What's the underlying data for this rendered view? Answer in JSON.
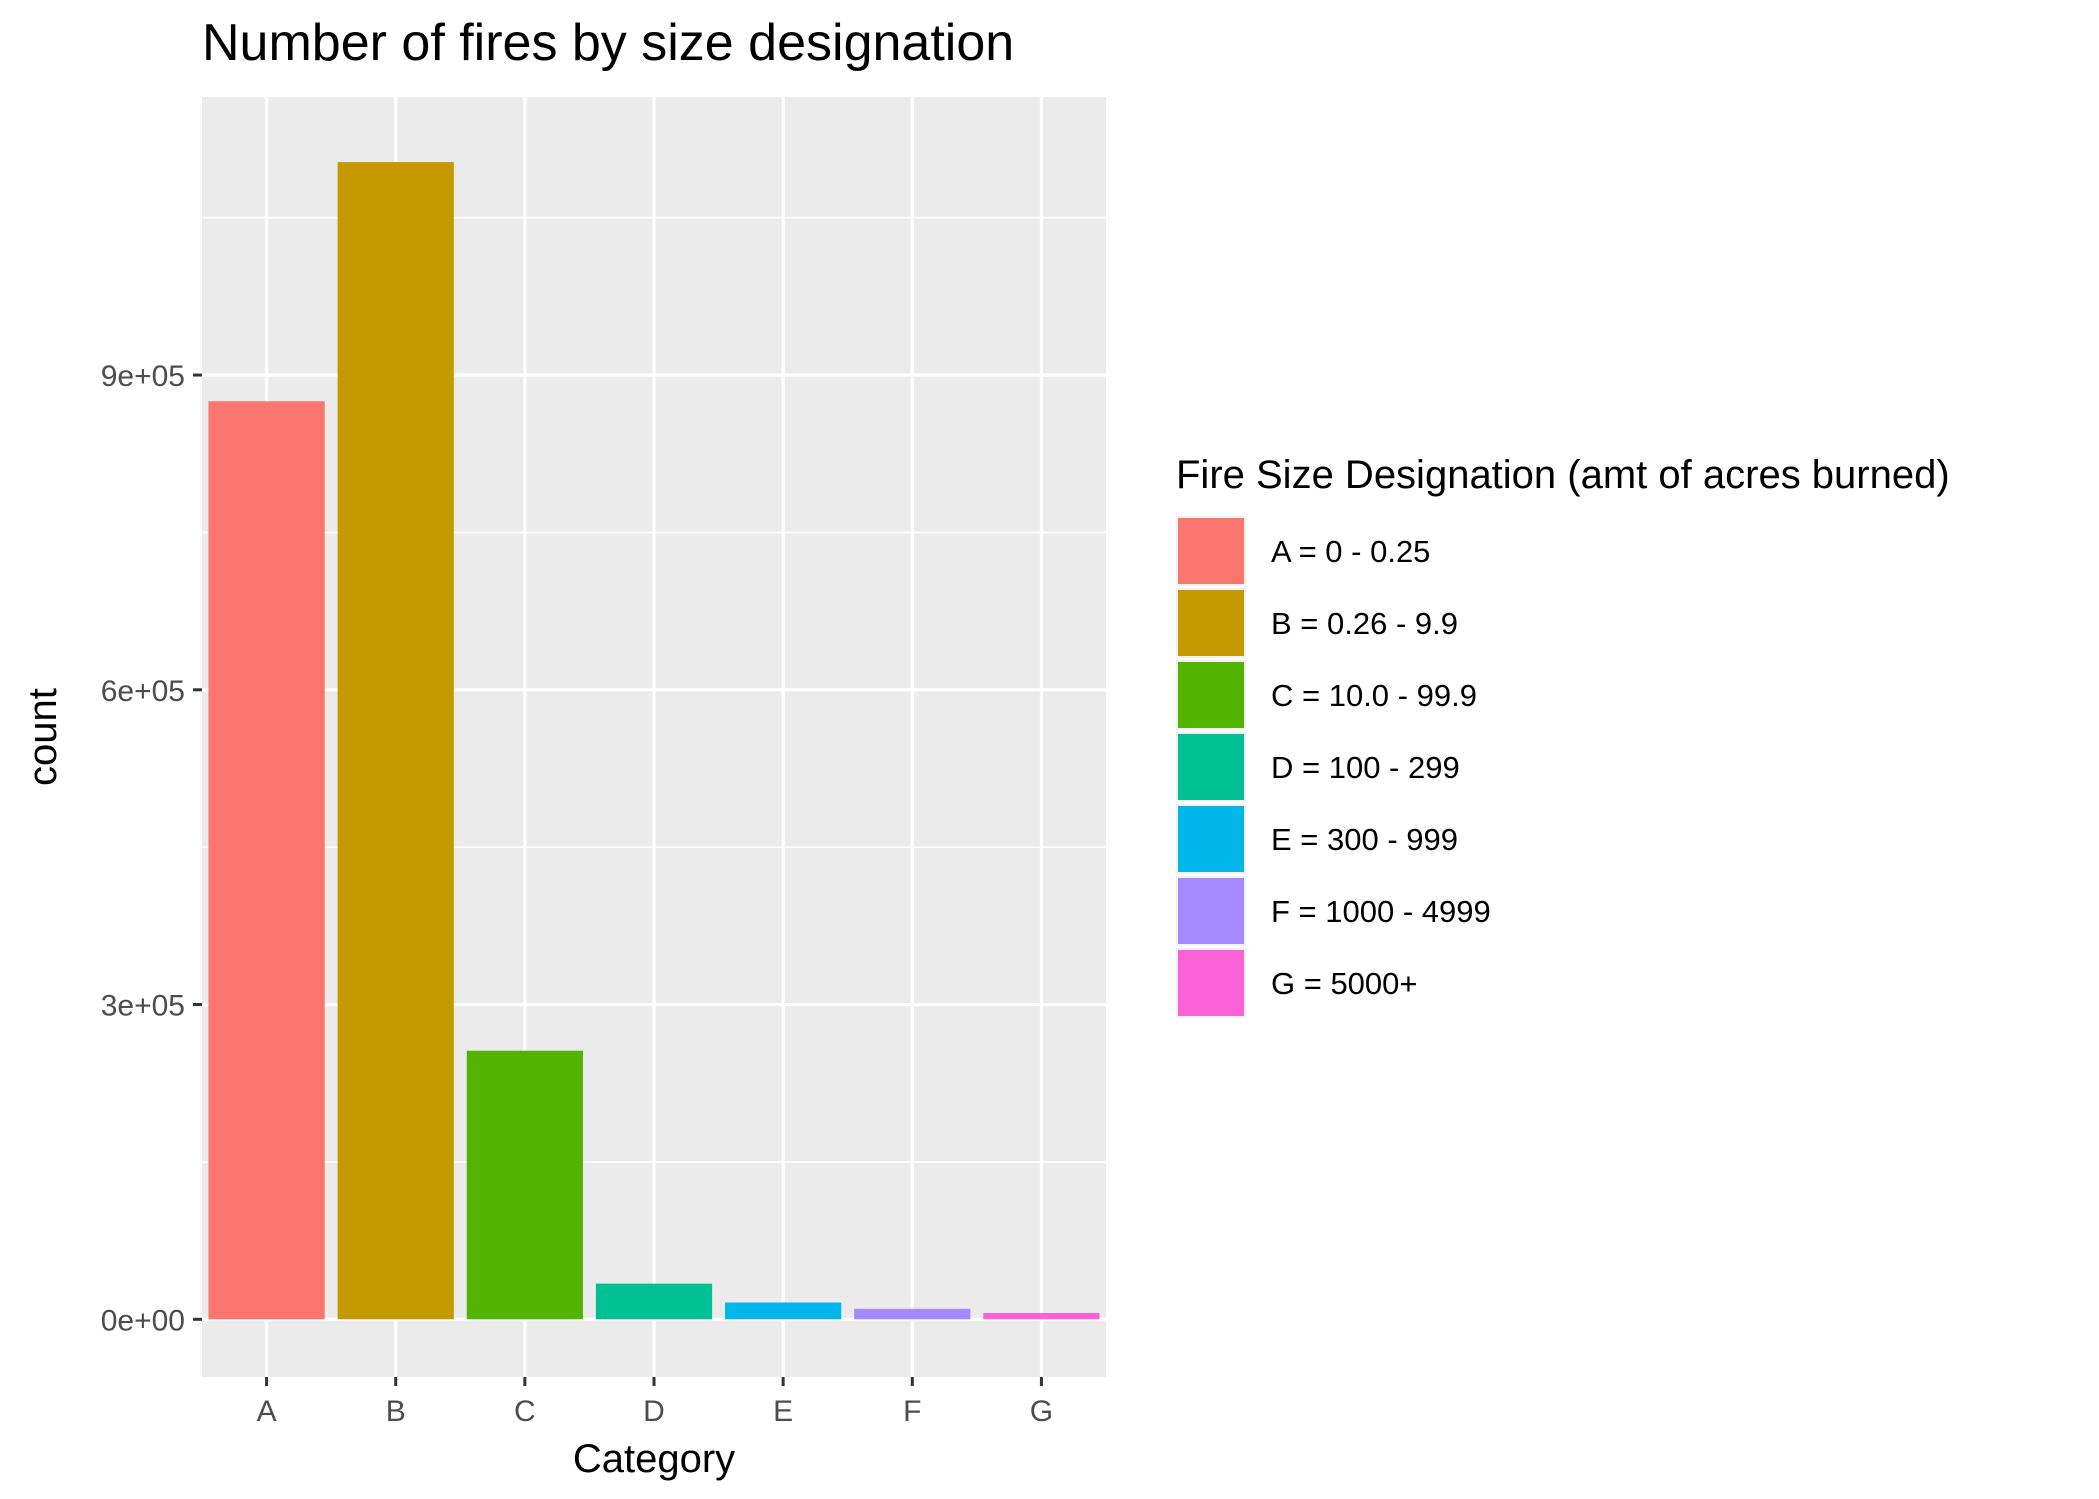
{
  "chart_data": {
    "type": "bar",
    "title": "Number of fires by size designation",
    "xlabel": "Category",
    "ylabel": "count",
    "categories": [
      "A",
      "B",
      "C",
      "D",
      "E",
      "F",
      "G"
    ],
    "values": [
      875000,
      1103000,
      256000,
      34000,
      16000,
      10000,
      6000
    ],
    "colors": [
      "#F8766D",
      "#C49A00",
      "#53B400",
      "#00C094",
      "#00B6EB",
      "#A58AFF",
      "#FB61D7"
    ],
    "ylim": [
      -55000,
      1165000
    ],
    "yticks": [
      0,
      300000,
      600000,
      900000
    ],
    "ytick_labels": [
      "0e+00",
      "3e+05",
      "6e+05",
      "9e+05"
    ],
    "grid": true,
    "panel_background": "#EBEBEB",
    "gridline_color": "#FFFFFF",
    "legend": {
      "position": "right",
      "title": "Fire Size Designation (amt of acres burned)",
      "labels": [
        "A = 0 - 0.25",
        "B = 0.26 - 9.9",
        "C = 10.0 - 99.9",
        "D = 100 - 299",
        "E = 300 - 999",
        "F = 1000 - 4999",
        "G = 5000+"
      ]
    }
  }
}
